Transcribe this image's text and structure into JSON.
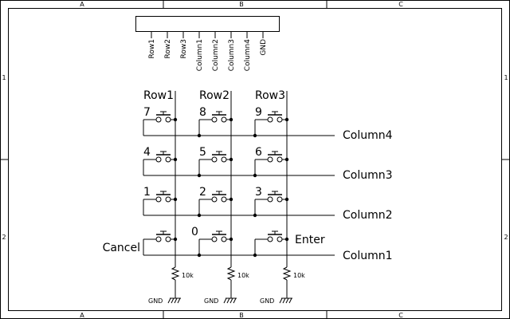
{
  "frame": {
    "columns": [
      "A",
      "B",
      "C"
    ],
    "rows": [
      "1",
      "2"
    ]
  },
  "connector": {
    "pins": [
      "Row1",
      "Row2",
      "Row3",
      "Column1",
      "Column2",
      "Column3",
      "Column4",
      "GND"
    ]
  },
  "rows": [
    "Row1",
    "Row2",
    "Row3"
  ],
  "columns": [
    "Column4",
    "Column3",
    "Column2",
    "Column1"
  ],
  "keys": [
    [
      "7",
      "8",
      "9"
    ],
    [
      "4",
      "5",
      "6"
    ],
    [
      "1",
      "2",
      "3"
    ],
    [
      "Cancel",
      "0",
      "Enter"
    ]
  ],
  "resistors": {
    "value": "10k",
    "ground_label": "GND"
  }
}
